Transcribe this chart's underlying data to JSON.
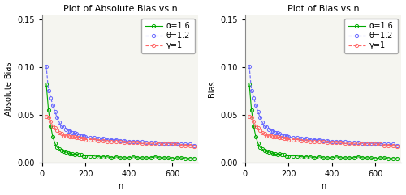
{
  "title_left": "Plot of Absolute Bias vs n",
  "title_right": "Plot of Bias vs n",
  "xlabel": "n",
  "ylabel_left": "Absolute Bias",
  "ylabel_right": "Bias",
  "ylim": [
    0.0,
    0.155
  ],
  "yticks": [
    0.0,
    0.05,
    0.1,
    0.15
  ],
  "n_values": [
    20,
    30,
    40,
    50,
    60,
    70,
    80,
    90,
    100,
    110,
    120,
    130,
    140,
    150,
    160,
    170,
    180,
    190,
    200,
    220,
    240,
    260,
    280,
    300,
    320,
    340,
    360,
    380,
    400,
    420,
    440,
    460,
    480,
    500,
    520,
    540,
    560,
    580,
    600,
    620,
    640,
    660,
    680,
    700
  ],
  "abs_bias_alpha": [
    0.082,
    0.055,
    0.038,
    0.027,
    0.02,
    0.016,
    0.014,
    0.013,
    0.012,
    0.011,
    0.01,
    0.009,
    0.009,
    0.008,
    0.009,
    0.008,
    0.008,
    0.007,
    0.007,
    0.007,
    0.007,
    0.006,
    0.006,
    0.006,
    0.005,
    0.006,
    0.005,
    0.005,
    0.005,
    0.006,
    0.005,
    0.005,
    0.005,
    0.005,
    0.006,
    0.005,
    0.005,
    0.005,
    0.004,
    0.005,
    0.005,
    0.004,
    0.004,
    0.004
  ],
  "abs_bias_theta": [
    0.101,
    0.075,
    0.068,
    0.06,
    0.053,
    0.047,
    0.042,
    0.038,
    0.037,
    0.035,
    0.033,
    0.033,
    0.031,
    0.031,
    0.03,
    0.029,
    0.028,
    0.028,
    0.027,
    0.026,
    0.026,
    0.025,
    0.025,
    0.024,
    0.024,
    0.024,
    0.023,
    0.023,
    0.022,
    0.022,
    0.022,
    0.022,
    0.021,
    0.021,
    0.021,
    0.02,
    0.02,
    0.02,
    0.02,
    0.02,
    0.019,
    0.019,
    0.019,
    0.018
  ],
  "abs_bias_gamma": [
    0.048,
    0.047,
    0.043,
    0.038,
    0.036,
    0.034,
    0.031,
    0.03,
    0.028,
    0.028,
    0.028,
    0.027,
    0.027,
    0.027,
    0.026,
    0.026,
    0.025,
    0.025,
    0.024,
    0.024,
    0.024,
    0.023,
    0.023,
    0.022,
    0.022,
    0.022,
    0.022,
    0.021,
    0.021,
    0.021,
    0.021,
    0.02,
    0.02,
    0.02,
    0.02,
    0.019,
    0.019,
    0.019,
    0.019,
    0.019,
    0.018,
    0.018,
    0.018,
    0.017
  ],
  "bias_alpha": [
    0.082,
    0.055,
    0.038,
    0.027,
    0.02,
    0.016,
    0.014,
    0.013,
    0.012,
    0.011,
    0.01,
    0.009,
    0.009,
    0.008,
    0.009,
    0.008,
    0.008,
    0.007,
    0.007,
    0.007,
    0.007,
    0.006,
    0.006,
    0.006,
    0.005,
    0.006,
    0.005,
    0.005,
    0.005,
    0.006,
    0.005,
    0.005,
    0.005,
    0.005,
    0.006,
    0.005,
    0.005,
    0.005,
    0.004,
    0.005,
    0.005,
    0.004,
    0.004,
    0.004
  ],
  "bias_theta": [
    0.101,
    0.075,
    0.068,
    0.06,
    0.053,
    0.047,
    0.042,
    0.038,
    0.037,
    0.035,
    0.033,
    0.033,
    0.031,
    0.031,
    0.03,
    0.029,
    0.028,
    0.028,
    0.027,
    0.026,
    0.026,
    0.025,
    0.025,
    0.024,
    0.024,
    0.024,
    0.023,
    0.023,
    0.022,
    0.022,
    0.022,
    0.022,
    0.021,
    0.021,
    0.021,
    0.02,
    0.02,
    0.02,
    0.02,
    0.02,
    0.019,
    0.019,
    0.019,
    0.018
  ],
  "bias_gamma": [
    0.048,
    0.047,
    0.043,
    0.038,
    0.036,
    0.034,
    0.031,
    0.03,
    0.028,
    0.028,
    0.028,
    0.027,
    0.027,
    0.027,
    0.026,
    0.026,
    0.025,
    0.025,
    0.024,
    0.024,
    0.024,
    0.023,
    0.023,
    0.022,
    0.022,
    0.022,
    0.022,
    0.021,
    0.021,
    0.021,
    0.021,
    0.02,
    0.02,
    0.02,
    0.02,
    0.019,
    0.019,
    0.019,
    0.019,
    0.019,
    0.018,
    0.018,
    0.018,
    0.017
  ],
  "color_alpha": "#00aa00",
  "color_theta": "#6666ff",
  "color_gamma": "#ff6666",
  "xticks": [
    0,
    200,
    400,
    600
  ],
  "marker_size": 3,
  "title_fontsize": 8,
  "label_fontsize": 7,
  "tick_fontsize": 7,
  "legend_fontsize": 7,
  "bg_color": "#f5f5f0"
}
